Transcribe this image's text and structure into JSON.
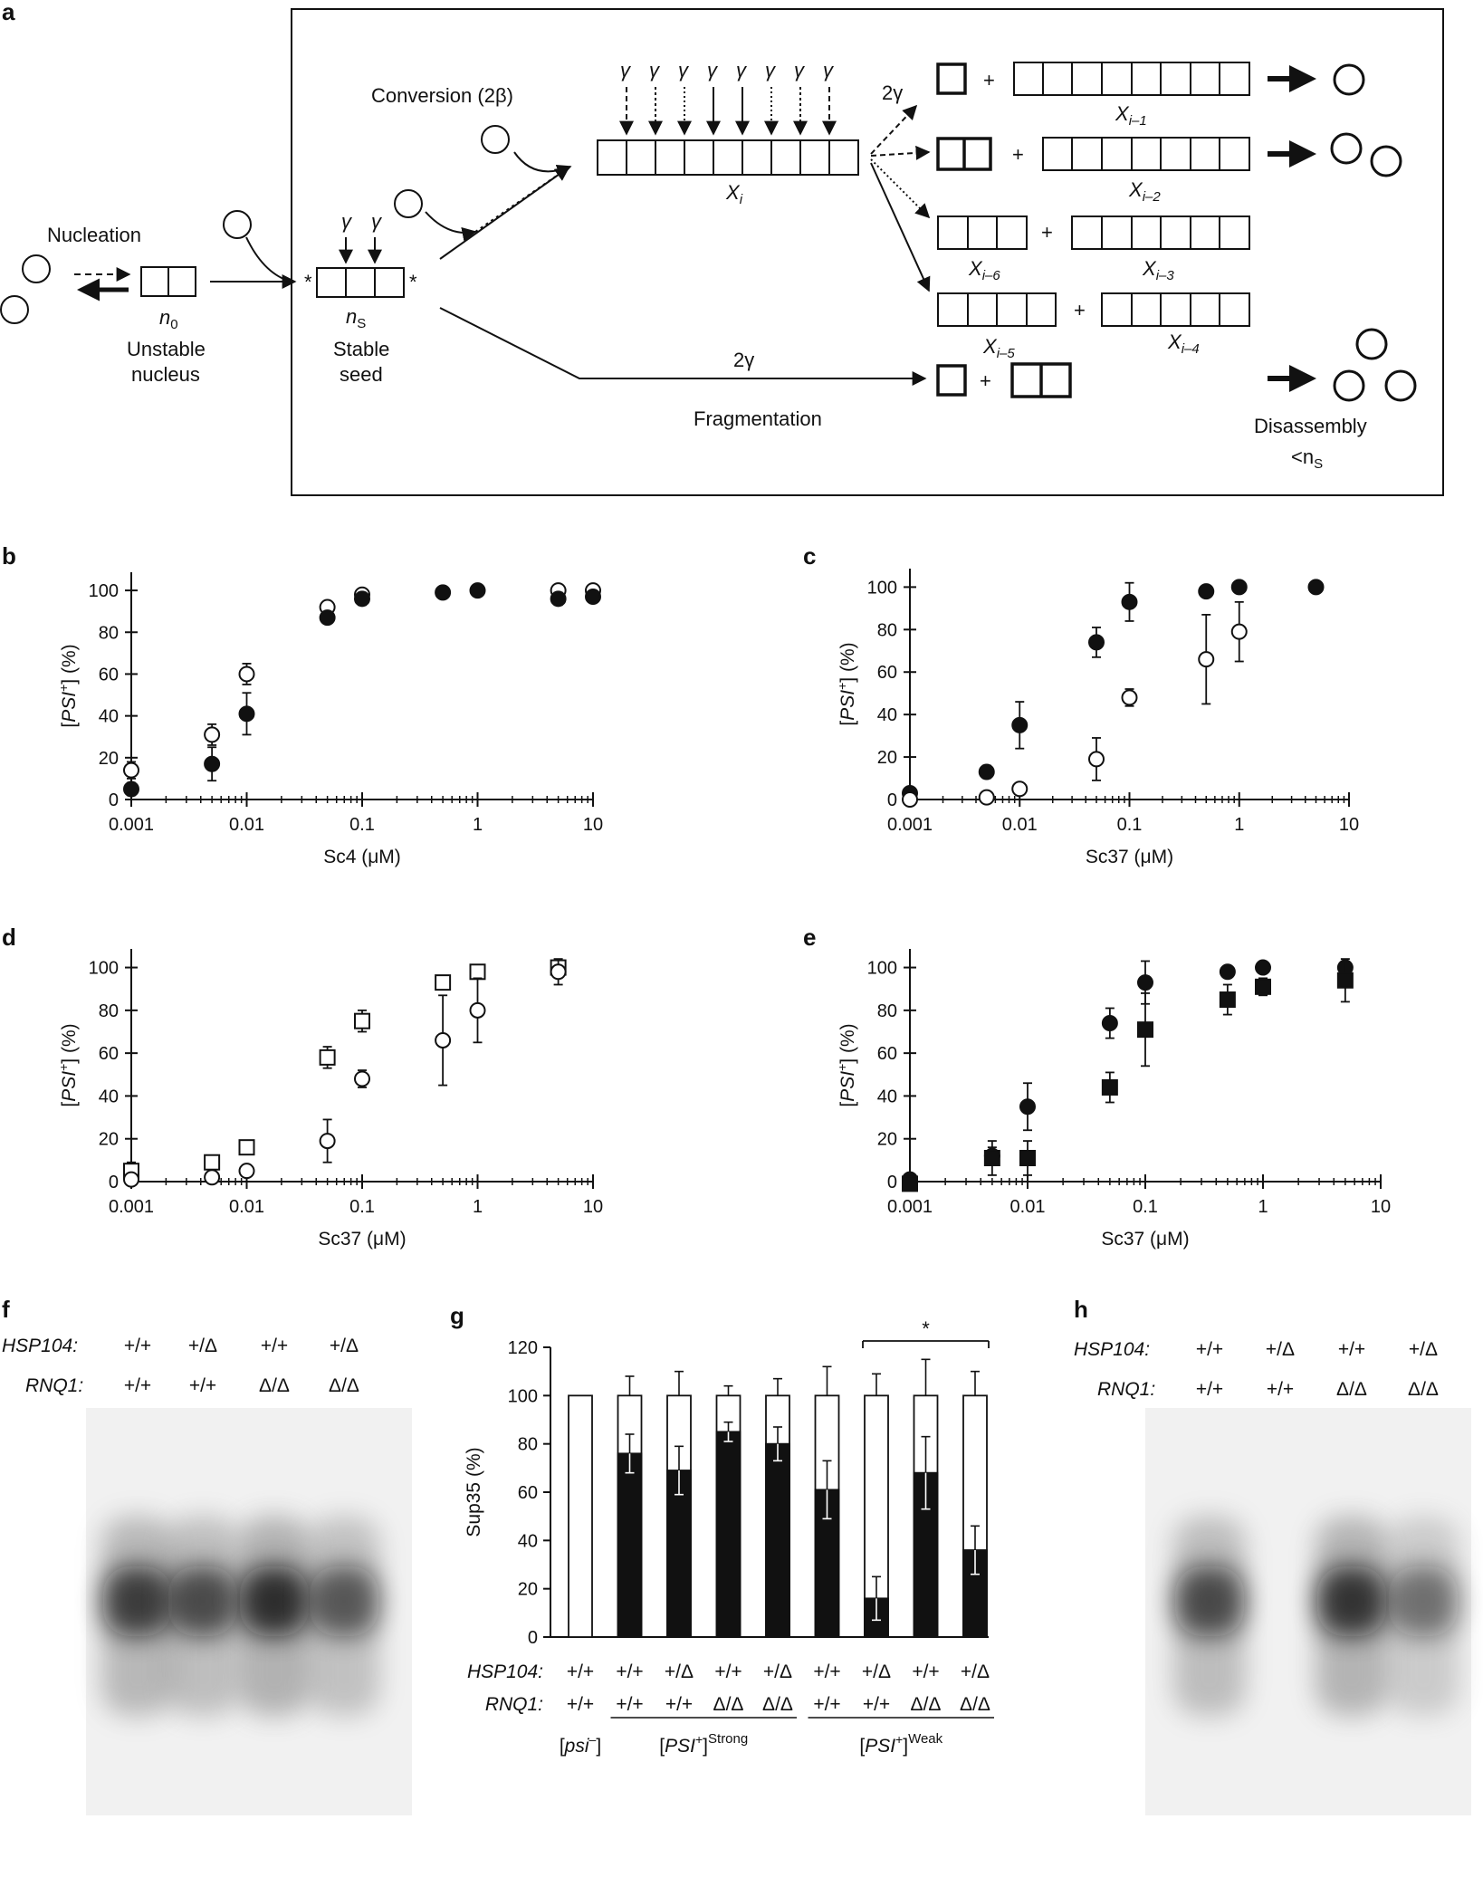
{
  "panels": {
    "a": {
      "label": "a",
      "nucleation": "Nucleation",
      "unstable_nucleus_line1": "Unstable",
      "unstable_nucleus_line2": "nucleus",
      "n0_main": "n",
      "n0_sub": "0",
      "stable_seed_line1": "Stable",
      "stable_seed_line2": "seed",
      "ns_main": "n",
      "ns_sub": "S",
      "conversion": "Conversion (2β)",
      "gamma": "γ",
      "xi_main": "X",
      "xi_sub": "i",
      "two_gamma": "2γ",
      "fragmentation": "Fragmentation",
      "disassembly": "Disassembly",
      "disassembly_sub_main": "<n",
      "disassembly_sub_sub": "S",
      "plus": "+",
      "star": "*",
      "products": [
        {
          "main": "X",
          "sub": "i–1"
        },
        {
          "main": "X",
          "sub": "i–2"
        },
        {
          "main": "X",
          "sub": "i–6"
        },
        {
          "main": "X",
          "sub": "i–3"
        },
        {
          "main": "X",
          "sub": "i–5"
        },
        {
          "main": "X",
          "sub": "i–4"
        }
      ]
    },
    "b": {
      "label": "b"
    },
    "c": {
      "label": "c"
    },
    "d": {
      "label": "d"
    },
    "e": {
      "label": "e"
    },
    "f": {
      "label": "f",
      "row1_label": "HSP104:",
      "row2_label": "RNQ1:",
      "row1": [
        "+/+",
        "+/Δ",
        "+/+",
        "+/Δ"
      ],
      "row2": [
        "+/+",
        "+/+",
        "Δ/Δ",
        "Δ/Δ"
      ],
      "band_intensity": [
        0.85,
        0.72,
        1.0,
        0.62
      ]
    },
    "g": {
      "label": "g"
    },
    "h": {
      "label": "h",
      "row1_label": "HSP104:",
      "row2_label": "RNQ1:",
      "row1": [
        "+/+",
        "+/Δ",
        "+/+",
        "+/Δ"
      ],
      "row2": [
        "+/+",
        "+/+",
        "Δ/Δ",
        "Δ/Δ"
      ],
      "band_intensity": [
        0.75,
        0.0,
        0.95,
        0.42
      ]
    }
  },
  "chart_data": [
    {
      "panel": "b",
      "type": "scatter",
      "xscale": "log",
      "xlabel": "Sc4 (μM)",
      "ylabel": "[PSI+] (%)",
      "ylabel_italic": "PSI",
      "ylabel_sup": "+",
      "xlim": [
        0.001,
        10
      ],
      "ylim": [
        0,
        100
      ],
      "xticks": [
        "0.001",
        "0.01",
        "0.1",
        "1",
        "10"
      ],
      "yticks": [
        "0",
        "20",
        "40",
        "60",
        "80",
        "100"
      ],
      "series": [
        {
          "marker": "circle-open",
          "x": [
            0.001,
            0.005,
            0.01,
            0.05,
            0.1,
            5,
            10
          ],
          "y": [
            14,
            31,
            60,
            92,
            98,
            100,
            100
          ],
          "err": [
            4,
            5,
            5,
            2,
            2,
            1,
            1
          ]
        },
        {
          "marker": "circle-filled",
          "x": [
            0.001,
            0.005,
            0.01,
            0.05,
            0.1,
            0.5,
            1,
            5,
            10
          ],
          "y": [
            5,
            17,
            41,
            87,
            96,
            99,
            100,
            96,
            97
          ],
          "err": [
            3,
            8,
            10,
            2,
            3,
            1,
            1,
            3,
            2
          ]
        }
      ]
    },
    {
      "panel": "c",
      "type": "scatter",
      "xscale": "log",
      "xlabel": "Sc37 (μM)",
      "ylabel": "[PSI+] (%)",
      "ylabel_italic": "PSI",
      "ylabel_sup": "+",
      "xlim": [
        0.001,
        10
      ],
      "ylim": [
        0,
        100
      ],
      "xticks": [
        "0.001",
        "0.01",
        "0.1",
        "1",
        "10"
      ],
      "yticks": [
        "0",
        "20",
        "40",
        "60",
        "80",
        "100"
      ],
      "series": [
        {
          "marker": "circle-filled",
          "x": [
            0.001,
            0.005,
            0.01,
            0.05,
            0.1,
            0.5,
            1,
            5
          ],
          "y": [
            3,
            13,
            35,
            74,
            93,
            98,
            100,
            100
          ],
          "err": [
            2,
            3,
            11,
            7,
            9,
            1,
            1,
            0
          ]
        },
        {
          "marker": "circle-open",
          "x": [
            0.001,
            0.005,
            0.01,
            0.05,
            0.1,
            0.5,
            1
          ],
          "y": [
            0,
            1,
            5,
            19,
            48,
            66,
            79
          ],
          "err": [
            0,
            1,
            2,
            10,
            4,
            21,
            14
          ]
        }
      ]
    },
    {
      "panel": "d",
      "type": "scatter",
      "xscale": "log",
      "xlabel": "Sc37 (μM)",
      "ylabel": "[PSI+] (%)",
      "ylabel_italic": "PSI",
      "ylabel_sup": "+",
      "xlim": [
        0.001,
        10
      ],
      "ylim": [
        0,
        100
      ],
      "xticks": [
        "0.001",
        "0.01",
        "0.1",
        "1",
        "10"
      ],
      "yticks": [
        "0",
        "20",
        "40",
        "60",
        "80",
        "100"
      ],
      "series": [
        {
          "marker": "square-open",
          "x": [
            0.001,
            0.005,
            0.01,
            0.05,
            0.1,
            0.5,
            1,
            5
          ],
          "y": [
            5,
            9,
            16,
            58,
            75,
            93,
            98,
            100
          ],
          "err": [
            4,
            2,
            3,
            5,
            5,
            2,
            1,
            1
          ]
        },
        {
          "marker": "circle-open",
          "x": [
            0.001,
            0.005,
            0.01,
            0.05,
            0.1,
            0.5,
            1,
            5
          ],
          "y": [
            1,
            2,
            5,
            19,
            48,
            66,
            80,
            98
          ],
          "err": [
            1,
            1,
            2,
            10,
            4,
            21,
            15,
            6
          ]
        }
      ]
    },
    {
      "panel": "e",
      "type": "scatter",
      "xscale": "log",
      "xlabel": "Sc37 (μM)",
      "ylabel": "[PSI+] (%)",
      "ylabel_italic": "PSI",
      "ylabel_sup": "+",
      "xlim": [
        0.001,
        10
      ],
      "ylim": [
        0,
        100
      ],
      "xticks": [
        "0.001",
        "0.01",
        "0.1",
        "1",
        "10"
      ],
      "yticks": [
        "0",
        "20",
        "40",
        "60",
        "80",
        "100"
      ],
      "series": [
        {
          "marker": "circle-filled",
          "x": [
            0.001,
            0.005,
            0.01,
            0.05,
            0.1,
            0.5,
            1,
            5
          ],
          "y": [
            1,
            12,
            35,
            74,
            93,
            98,
            100,
            100
          ],
          "err": [
            1,
            4,
            11,
            7,
            10,
            1,
            1,
            1
          ]
        },
        {
          "marker": "square-filled",
          "x": [
            0.001,
            0.005,
            0.01,
            0.05,
            0.1,
            0.5,
            1,
            5
          ],
          "y": [
            -1,
            11,
            11,
            44,
            71,
            85,
            91,
            94
          ],
          "err": [
            1,
            8,
            8,
            7,
            17,
            7,
            4,
            10
          ]
        }
      ]
    },
    {
      "panel": "g",
      "type": "bar",
      "stacked": true,
      "ylabel": "Sup35 (%)",
      "ylim": [
        0,
        120
      ],
      "yticks": [
        "0",
        "20",
        "40",
        "60",
        "80",
        "100",
        "120"
      ],
      "row1_label": "HSP104:",
      "row2_label": "RNQ1:",
      "row1": [
        "+/+",
        "+/+",
        "+/Δ",
        "+/+",
        "+/Δ",
        "+/+",
        "+/Δ",
        "+/+",
        "+/Δ"
      ],
      "row2": [
        "+/+",
        "+/+",
        "+/+",
        "Δ/Δ",
        "Δ/Δ",
        "+/+",
        "+/+",
        "Δ/Δ",
        "Δ/Δ"
      ],
      "groups": [
        {
          "italic": "psi",
          "sup": "–",
          "prefix": "[",
          "suffix": "]",
          "superscript_text": ""
        },
        {
          "italic": "PSI",
          "sup": "+",
          "prefix": "[",
          "suffix": "]",
          "superscript_text": "Strong"
        },
        {
          "italic": "PSI",
          "sup": "+",
          "prefix": "[",
          "suffix": "]",
          "superscript_text": "Weak"
        }
      ],
      "total": [
        100,
        100,
        100,
        100,
        100,
        100,
        100,
        100,
        100
      ],
      "total_err": [
        0,
        8,
        10,
        4,
        7,
        12,
        9,
        15,
        10
      ],
      "filled": [
        0,
        76,
        69,
        85,
        80,
        61,
        16,
        68,
        36
      ],
      "filled_err": [
        0,
        8,
        10,
        4,
        7,
        12,
        9,
        15,
        10
      ],
      "significance": "*",
      "significance_between": [
        6,
        8
      ]
    }
  ]
}
